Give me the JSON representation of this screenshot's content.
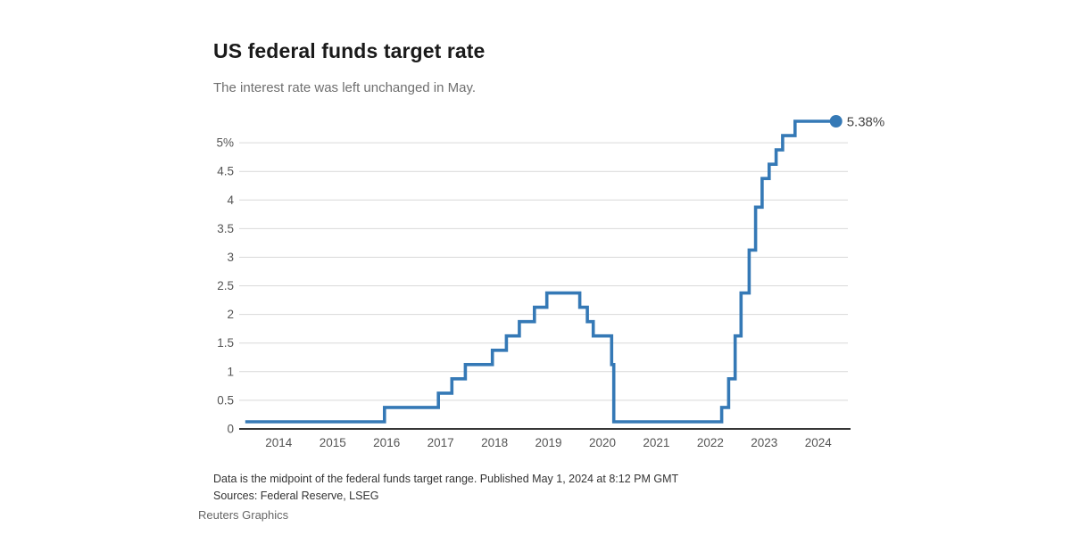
{
  "header": {
    "title": "US federal funds target rate",
    "subtitle": "The interest rate was left unchanged in May."
  },
  "footer": {
    "note": "Data is the midpoint of the federal funds target range. Published May 1, 2024 at 8:12 PM GMT",
    "sources": "Sources: Federal Reserve, LSEG",
    "credit": "Reuters Graphics"
  },
  "chart_data": {
    "type": "line",
    "step": true,
    "title": "US federal funds target rate",
    "subtitle": "The interest rate was left unchanged in May.",
    "xlabel": "",
    "ylabel": "",
    "x": [
      2013.38,
      2015.96,
      2016.96,
      2017.21,
      2017.46,
      2017.96,
      2018.22,
      2018.46,
      2018.74,
      2018.97,
      2019.58,
      2019.72,
      2019.83,
      2020.17,
      2020.21,
      2022.21,
      2022.34,
      2022.46,
      2022.57,
      2022.72,
      2022.84,
      2022.96,
      2023.09,
      2023.22,
      2023.34,
      2023.57
    ],
    "y": [
      0.125,
      0.375,
      0.625,
      0.875,
      1.125,
      1.375,
      1.625,
      1.875,
      2.125,
      2.375,
      2.125,
      1.875,
      1.625,
      1.125,
      0.125,
      0.375,
      0.875,
      1.625,
      2.375,
      3.125,
      3.875,
      4.375,
      4.625,
      4.875,
      5.125,
      5.375
    ],
    "x_end": 2024.33,
    "end_value": 5.375,
    "end_label": "5.38%",
    "x_ticks": [
      2014,
      2015,
      2016,
      2017,
      2018,
      2019,
      2020,
      2021,
      2022,
      2023,
      2024
    ],
    "y_ticks": [
      {
        "value": 0,
        "label": "0"
      },
      {
        "value": 0.5,
        "label": "0.5"
      },
      {
        "value": 1,
        "label": "1"
      },
      {
        "value": 1.5,
        "label": "1.5"
      },
      {
        "value": 2,
        "label": "2"
      },
      {
        "value": 2.5,
        "label": "2.5"
      },
      {
        "value": 3,
        "label": "3"
      },
      {
        "value": 3.5,
        "label": "3.5"
      },
      {
        "value": 4,
        "label": "4"
      },
      {
        "value": 4.5,
        "label": "4.5"
      },
      {
        "value": 5,
        "label": "5%"
      }
    ],
    "xlim": [
      2013.3,
      2024.55
    ],
    "ylim": [
      0,
      5.5
    ],
    "grid": "horizontal-only",
    "legend": "none",
    "colors": {
      "line": "#3579b6",
      "grid": "#d9d9d9",
      "axis": "#1a1a1a",
      "tick_text": "#555555",
      "end_label_text": "#444444"
    }
  }
}
